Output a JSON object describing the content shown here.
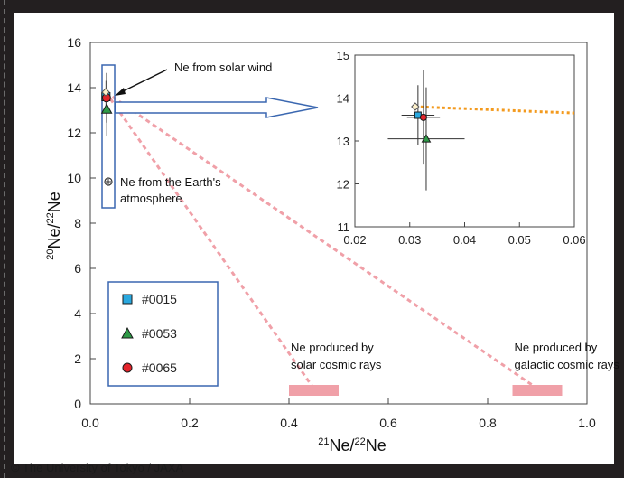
{
  "chart_data": {
    "type": "scatter",
    "xlabel_sup": "21",
    "xlabel_main": "Ne/",
    "xlabel_sup2": "22",
    "xlabel_end": "Ne",
    "ylabel_sup": "20",
    "ylabel_main": "Ne/",
    "ylabel_sup2": "22",
    "ylabel_end": "Ne",
    "xlim": [
      0.0,
      1.0
    ],
    "ylim": [
      0,
      16
    ],
    "xticks": [
      "0.0",
      "0.2",
      "0.4",
      "0.6",
      "0.8",
      "1.0"
    ],
    "yticks": [
      "0",
      "2",
      "4",
      "6",
      "8",
      "10",
      "12",
      "14",
      "16"
    ],
    "series": [
      {
        "name": "#0015",
        "marker": "square",
        "color": "#29a8df",
        "x": 0.0315,
        "y": 13.6,
        "xerr": 0.003,
        "yerr": 0.7
      },
      {
        "name": "#0053",
        "marker": "triangle",
        "color": "#2e9a47",
        "x": 0.033,
        "y": 13.05,
        "xerr": 0.007,
        "yerr": 1.2
      },
      {
        "name": "#0065",
        "marker": "circle",
        "color": "#e3242b",
        "x": 0.0325,
        "y": 13.55,
        "xerr": 0.003,
        "yerr": 1.1
      }
    ],
    "reference_points": [
      {
        "label": "Ne from the Earth's atmosphere",
        "x": 0.029,
        "y": 9.8
      }
    ],
    "regions": [
      {
        "label_line1": "Ne produced by",
        "label_line2": "solar cosmic rays",
        "x": [
          0.4,
          0.5
        ],
        "y": 0.6,
        "color": "#f0a0a8"
      },
      {
        "label_line1": "Ne produced by",
        "label_line2": "galactic cosmic rays",
        "x": [
          0.85,
          0.95
        ],
        "y": 0.6,
        "color": "#f0a0a8"
      }
    ],
    "solar_wind": {
      "label": "Ne from solar wind",
      "x": 0.031,
      "y": 13.8
    },
    "atmosphere_label_line1": "Ne from the Earth's",
    "atmosphere_label_line2": "atmosphere",
    "inset": {
      "xlim": [
        0.02,
        0.06
      ],
      "ylim": [
        11,
        15
      ],
      "xticks": [
        "0.02",
        "0.03",
        "0.04",
        "0.05",
        "0.06"
      ],
      "yticks": [
        "11",
        "12",
        "13",
        "14",
        "15"
      ]
    },
    "legend_placement": "bottom-left",
    "grid": false
  },
  "credit": "© The University of Tokyo / JAXA"
}
